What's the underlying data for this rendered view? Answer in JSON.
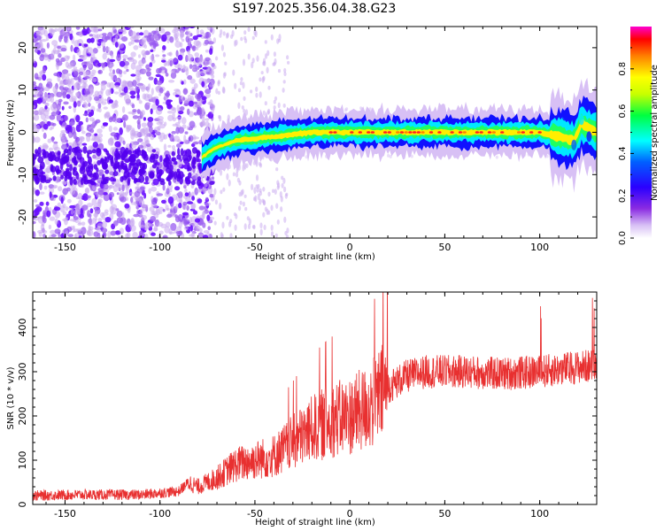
{
  "figure_title": "S197.2025.356.04.38.G23",
  "chart_data": [
    {
      "type": "heatmap",
      "title": "S197.2025.356.04.38.G23",
      "xlabel": "Height of straight line (km)",
      "ylabel": "Frequency (Hz)",
      "xlim": [
        -167,
        130
      ],
      "ylim": [
        -25,
        25
      ],
      "xticks": [
        -150,
        -100,
        -50,
        0,
        50,
        100
      ],
      "yticks": [
        -20,
        -10,
        0,
        10,
        20
      ],
      "xtick_labels": [
        "-150",
        "-100",
        "-50",
        "0",
        "50",
        "100"
      ],
      "ytick_labels": [
        "-20",
        "-10",
        "0",
        "10",
        "20"
      ],
      "colorbar": {
        "label": "Normalized spectral amplitude",
        "range": [
          0,
          1
        ],
        "ticks": [
          "0.0",
          "0.2",
          "0.4",
          "0.6",
          "0.8"
        ],
        "tick_values": [
          0.0,
          0.2,
          0.4,
          0.6,
          0.8
        ],
        "colormap": [
          "#ffffff",
          "#c8a8f0",
          "#7b00ff",
          "#0000ff",
          "#00ffff",
          "#00ff00",
          "#ffff00",
          "#ff8000",
          "#ff0000",
          "#ff00c0"
        ]
      },
      "ridge": {
        "description_x_range": [
          -75,
          130
        ],
        "center_freq_points": [
          [
            -78,
            -6
          ],
          [
            -72,
            -4
          ],
          [
            -60,
            -2
          ],
          [
            -40,
            -1
          ],
          [
            -20,
            0
          ],
          [
            0,
            0
          ],
          [
            50,
            0
          ],
          [
            100,
            0
          ],
          [
            110,
            -1
          ],
          [
            118,
            -2
          ],
          [
            122,
            2
          ],
          [
            130,
            0
          ]
        ]
      }
    },
    {
      "type": "line",
      "title": "",
      "xlabel": "Height of straight line (km)",
      "ylabel": "SNR (10 * v/v)",
      "xlim": [
        -167,
        130
      ],
      "ylim": [
        0,
        480
      ],
      "xticks": [
        -150,
        -100,
        -50,
        0,
        50,
        100
      ],
      "yticks": [
        0,
        100,
        200,
        300,
        400
      ],
      "xtick_labels": [
        "-150",
        "-100",
        "-50",
        "0",
        "50",
        "100"
      ],
      "ytick_labels": [
        "0",
        "100",
        "200",
        "300",
        "400"
      ],
      "series": [
        {
          "name": "SNR",
          "color": "#e83030",
          "trend": [
            [
              -167,
              20
            ],
            [
              -140,
              22
            ],
            [
              -110,
              22
            ],
            [
              -90,
              30
            ],
            [
              -85,
              50
            ],
            [
              -80,
              40
            ],
            [
              -70,
              60
            ],
            [
              -60,
              90
            ],
            [
              -50,
              100
            ],
            [
              -40,
              110
            ],
            [
              -30,
              140
            ],
            [
              -20,
              170
            ],
            [
              -10,
              190
            ],
            [
              0,
              200
            ],
            [
              10,
              220
            ],
            [
              20,
              265
            ],
            [
              30,
              290
            ],
            [
              40,
              300
            ],
            [
              60,
              300
            ],
            [
              80,
              295
            ],
            [
              100,
              300
            ],
            [
              110,
              305
            ],
            [
              120,
              310
            ],
            [
              130,
              315
            ]
          ]
        }
      ]
    }
  ]
}
